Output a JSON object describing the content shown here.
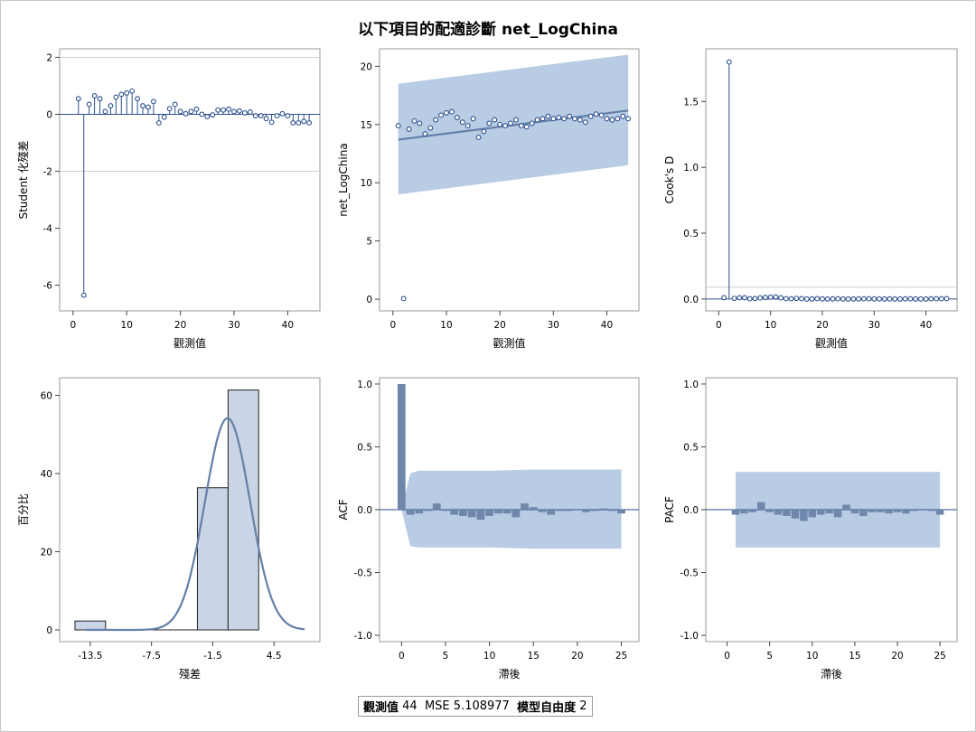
{
  "title": "以下項目的配適診斷 net_LogChina",
  "footer": {
    "n_label": "觀測值",
    "n_value": "44",
    "mse_label": "MSE",
    "mse_value": "5.108977",
    "df_label": "模型自由度",
    "df_value": "2"
  },
  "colors": {
    "marker": "#2b4f8f",
    "band": "#b8cce4",
    "line": "#6480a8",
    "bar_fill": "#c9d5e6",
    "bar_dark": "#6f87aa",
    "frame": "#9a9a9a"
  },
  "chart_data": [
    {
      "id": "rstudent",
      "type": "needle",
      "xlabel": "觀測值",
      "ylabel": "Student 化殘差",
      "xticks": [
        "0",
        "10",
        "20",
        "30",
        "40"
      ],
      "yticks": [
        "-6",
        "-4",
        "-2",
        "0",
        "2"
      ],
      "xlim": [
        -2.5,
        46
      ],
      "ylim": [
        -6.9,
        2.3
      ],
      "reference_lines": [
        2,
        -2
      ],
      "x": [
        1,
        2,
        3,
        4,
        5,
        6,
        7,
        8,
        9,
        10,
        11,
        12,
        13,
        14,
        15,
        16,
        17,
        18,
        19,
        20,
        21,
        22,
        23,
        24,
        25,
        26,
        27,
        28,
        29,
        30,
        31,
        32,
        33,
        34,
        35,
        36,
        37,
        38,
        39,
        40,
        41,
        42,
        43,
        44
      ],
      "values": [
        0.55,
        -6.35,
        0.35,
        0.65,
        0.55,
        0.1,
        0.3,
        0.6,
        0.7,
        0.75,
        0.82,
        0.55,
        0.3,
        0.25,
        0.45,
        -0.3,
        -0.1,
        0.2,
        0.35,
        0.1,
        0.02,
        0.1,
        0.18,
        0.0,
        -0.08,
        -0.02,
        0.15,
        0.15,
        0.18,
        0.1,
        0.12,
        0.05,
        0.08,
        -0.05,
        -0.05,
        -0.15,
        -0.28,
        -0.05,
        0.02,
        -0.05,
        -0.3,
        -0.3,
        -0.25,
        -0.3
      ]
    },
    {
      "id": "fit",
      "type": "scatter",
      "xlabel": "觀測值",
      "ylabel": "net_LogChina",
      "xticks": [
        "0",
        "10",
        "20",
        "30",
        "40"
      ],
      "yticks": [
        "0",
        "5",
        "10",
        "15",
        "20"
      ],
      "xlim": [
        -2.5,
        46
      ],
      "ylim": [
        -1,
        21.5
      ],
      "x": [
        1,
        2,
        3,
        4,
        5,
        6,
        7,
        8,
        9,
        10,
        11,
        12,
        13,
        14,
        15,
        16,
        17,
        18,
        19,
        20,
        21,
        22,
        23,
        24,
        25,
        26,
        27,
        28,
        29,
        30,
        31,
        32,
        33,
        34,
        35,
        36,
        37,
        38,
        39,
        40,
        41,
        42,
        43,
        44
      ],
      "values": [
        14.9,
        0.05,
        14.6,
        15.3,
        15.1,
        14.2,
        14.7,
        15.4,
        15.8,
        16.0,
        16.1,
        15.6,
        15.2,
        14.9,
        15.5,
        13.9,
        14.4,
        15.1,
        15.4,
        15.0,
        14.9,
        15.1,
        15.4,
        14.9,
        14.8,
        15.1,
        15.4,
        15.5,
        15.7,
        15.5,
        15.6,
        15.5,
        15.7,
        15.5,
        15.4,
        15.2,
        15.7,
        15.9,
        15.8,
        15.5,
        15.4,
        15.5,
        15.7,
        15.5
      ],
      "fit_line": {
        "x": [
          1,
          44
        ],
        "y": [
          13.7,
          16.2
        ]
      },
      "band": {
        "x": [
          1,
          44
        ],
        "upper": [
          18.5,
          21.0
        ],
        "lower": [
          9.0,
          11.5
        ]
      }
    },
    {
      "id": "cooksd",
      "type": "needle",
      "xlabel": "觀測值",
      "ylabel": "Cook's D",
      "xticks": [
        "0",
        "10",
        "20",
        "30",
        "40"
      ],
      "yticks": [
        "0.0",
        "0.5",
        "1.0",
        "1.5"
      ],
      "xlim": [
        -2.5,
        46
      ],
      "ylim": [
        -0.09,
        1.9
      ],
      "reference_lines": [
        0.09
      ],
      "x": [
        1,
        2,
        3,
        4,
        5,
        6,
        7,
        8,
        9,
        10,
        11,
        12,
        13,
        14,
        15,
        16,
        17,
        18,
        19,
        20,
        21,
        22,
        23,
        24,
        25,
        26,
        27,
        28,
        29,
        30,
        31,
        32,
        33,
        34,
        35,
        36,
        37,
        38,
        39,
        40,
        41,
        42,
        43,
        44
      ],
      "values": [
        0.01,
        1.8,
        0.005,
        0.01,
        0.01,
        0.002,
        0.004,
        0.008,
        0.012,
        0.014,
        0.016,
        0.009,
        0.003,
        0.002,
        0.005,
        0.003,
        0.0,
        0.001,
        0.003,
        0.001,
        0.0,
        0.001,
        0.002,
        0.0,
        0.0,
        0.0,
        0.001,
        0.002,
        0.002,
        0.001,
        0.001,
        0.0,
        0.001,
        0.0,
        0.0,
        0.001,
        0.002,
        0.0,
        0.0,
        0.0,
        0.002,
        0.002,
        0.002,
        0.003
      ]
    },
    {
      "id": "hist",
      "type": "histogram",
      "xlabel": "殘差",
      "ylabel": "百分比",
      "xticks": [
        "-13.5",
        "-7.5",
        "-1.5",
        "4.5"
      ],
      "yticks": [
        "0",
        "20",
        "40",
        "60"
      ],
      "xlim": [
        -16.5,
        9
      ],
      "ylim": [
        -3,
        64.5
      ],
      "bins": [
        {
          "start": -15.0,
          "end": -12.0,
          "percent": 2.27
        },
        {
          "start": -12.0,
          "end": -9.0,
          "percent": 0
        },
        {
          "start": -9.0,
          "end": -6.0,
          "percent": 0
        },
        {
          "start": -6.0,
          "end": -3.0,
          "percent": 0
        },
        {
          "start": -3.0,
          "end": 0.0,
          "percent": 36.36
        },
        {
          "start": 0.0,
          "end": 3.0,
          "percent": 61.36
        }
      ],
      "density": {
        "mean": -0.05,
        "sd": 2.21
      }
    },
    {
      "id": "acf",
      "type": "bar",
      "xlabel": "滯後",
      "ylabel": "ACF",
      "xticks": [
        "0",
        "5",
        "10",
        "15",
        "20",
        "25"
      ],
      "yticks": [
        "-1.0",
        "-0.5",
        "0.0",
        "0.5",
        "1.0"
      ],
      "xlim": [
        -2.5,
        27
      ],
      "ylim": [
        -1.05,
        1.05
      ],
      "lags": [
        0,
        1,
        2,
        3,
        4,
        5,
        6,
        7,
        8,
        9,
        10,
        11,
        12,
        13,
        14,
        15,
        16,
        17,
        18,
        19,
        20,
        21,
        22,
        23,
        24,
        25
      ],
      "values": [
        1.0,
        -0.04,
        -0.03,
        -0.01,
        0.05,
        -0.01,
        -0.04,
        -0.05,
        -0.06,
        -0.08,
        -0.05,
        -0.03,
        -0.03,
        -0.06,
        0.05,
        0.02,
        -0.02,
        -0.04,
        -0.01,
        -0.01,
        0.0,
        -0.02,
        -0.01,
        0.01,
        -0.01,
        -0.03
      ],
      "band": {
        "lags": [
          0,
          1,
          2,
          5,
          10,
          15,
          20,
          25
        ],
        "upper": [
          0.0,
          0.29,
          0.31,
          0.31,
          0.31,
          0.32,
          0.32,
          0.32
        ],
        "lower": [
          0.0,
          -0.29,
          -0.3,
          -0.3,
          -0.3,
          -0.31,
          -0.31,
          -0.31
        ]
      }
    },
    {
      "id": "pacf",
      "type": "bar",
      "xlabel": "滯後",
      "ylabel": "PACF",
      "xticks": [
        "0",
        "5",
        "10",
        "15",
        "20",
        "25"
      ],
      "yticks": [
        "-1.0",
        "-0.5",
        "0.0",
        "0.5",
        "1.0"
      ],
      "xlim": [
        -2.5,
        27
      ],
      "ylim": [
        -1.05,
        1.05
      ],
      "lags": [
        1,
        2,
        3,
        4,
        5,
        6,
        7,
        8,
        9,
        10,
        11,
        12,
        13,
        14,
        15,
        16,
        17,
        18,
        19,
        20,
        21,
        22,
        23,
        24,
        25
      ],
      "values": [
        -0.04,
        -0.03,
        -0.02,
        0.06,
        -0.02,
        -0.04,
        -0.05,
        -0.07,
        -0.09,
        -0.06,
        -0.04,
        -0.03,
        -0.06,
        0.04,
        -0.03,
        -0.05,
        -0.02,
        -0.02,
        -0.03,
        -0.02,
        -0.03,
        -0.01,
        0.0,
        -0.01,
        -0.04
      ],
      "band": {
        "lags": [
          1,
          25
        ],
        "upper": [
          0.3,
          0.3
        ],
        "lower": [
          -0.3,
          -0.3
        ]
      }
    }
  ]
}
